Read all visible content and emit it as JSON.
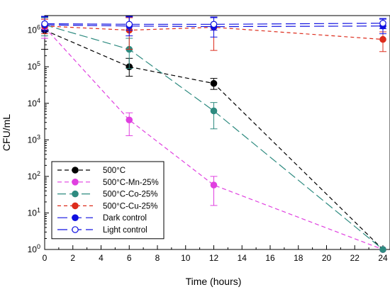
{
  "chart_data": {
    "type": "line",
    "title": "",
    "xlabel": "Time (hours)",
    "ylabel": "CFU/mL",
    "xlim": [
      0,
      24
    ],
    "ylim_log10": [
      0,
      6.4
    ],
    "y_scale": "log",
    "grid": false,
    "legend_position": "bottom-left",
    "x_ticks": [
      0,
      2,
      4,
      6,
      8,
      10,
      12,
      14,
      16,
      18,
      20,
      22,
      24
    ],
    "y_ticks": [
      {
        "exp": 0,
        "base": "10",
        "sup": "0"
      },
      {
        "exp": 1,
        "base": "10",
        "sup": "1"
      },
      {
        "exp": 2,
        "base": "10",
        "sup": "2"
      },
      {
        "exp": 3,
        "base": "10",
        "sup": "3"
      },
      {
        "exp": 4,
        "base": "10",
        "sup": "4"
      },
      {
        "exp": 5,
        "base": "10",
        "sup": "5"
      },
      {
        "exp": 6,
        "base": "10",
        "sup": "6"
      }
    ],
    "series": [
      {
        "name": "500°C",
        "color": "#000000",
        "marker": "filled",
        "dash": "6,4",
        "points": [
          {
            "x": 0,
            "y": 1000000,
            "lo": 300000,
            "hi": 2400000
          },
          {
            "x": 6,
            "y": 100000,
            "lo": 55000,
            "hi": 170000
          },
          {
            "x": 12,
            "y": 35000,
            "lo": 24000,
            "hi": 48000
          },
          {
            "x": 24,
            "y": 1,
            "lo": 1,
            "hi": 1
          }
        ]
      },
      {
        "name": "500°C-Mn-25%",
        "color": "#e040e0",
        "marker": "filled",
        "dash": "6,4",
        "points": [
          {
            "x": 0,
            "y": 1200000,
            "lo": 600000,
            "hi": 2000000
          },
          {
            "x": 6,
            "y": 3500,
            "lo": 1300,
            "hi": 5500
          },
          {
            "x": 12,
            "y": 58,
            "lo": 16,
            "hi": 100
          },
          {
            "x": 24,
            "y": 1,
            "lo": 1,
            "hi": 1
          }
        ]
      },
      {
        "name": "500°C-Co-25%",
        "color": "#2e8b80",
        "marker": "filled",
        "dash": "12,5",
        "points": [
          {
            "x": 0,
            "y": 1400000,
            "lo": 700000,
            "hi": 2200000
          },
          {
            "x": 6,
            "y": 300000,
            "lo": 90000,
            "hi": 600000
          },
          {
            "x": 12,
            "y": 6200,
            "lo": 2000,
            "hi": 10500
          },
          {
            "x": 24,
            "y": 1,
            "lo": 1,
            "hi": 1
          }
        ]
      },
      {
        "name": "500°C-Cu-25%",
        "color": "#dd2c1c",
        "marker": "filled",
        "dash": "5,4",
        "points": [
          {
            "x": 0,
            "y": 1300000,
            "lo": 800000,
            "hi": 2000000
          },
          {
            "x": 6,
            "y": 1000000,
            "lo": 300000,
            "hi": 2200000
          },
          {
            "x": 12,
            "y": 1200000,
            "lo": 280000,
            "hi": 2300000
          },
          {
            "x": 24,
            "y": 560000,
            "lo": 260000,
            "hi": 900000
          }
        ]
      },
      {
        "name": "Dark control",
        "color": "#1010e0",
        "marker": "filled",
        "dash": "14,6",
        "points": [
          {
            "x": 0,
            "y": 1400000,
            "lo": 900000,
            "hi": 2300000
          },
          {
            "x": 6,
            "y": 1300000,
            "lo": 700000,
            "hi": 2300000
          },
          {
            "x": 12,
            "y": 1250000,
            "lo": 650000,
            "hi": 2200000
          },
          {
            "x": 24,
            "y": 1300000,
            "lo": 800000,
            "hi": 2000000
          }
        ]
      },
      {
        "name": "Light control",
        "color": "#1010e0",
        "marker": "open",
        "dash": "14,6",
        "points": [
          {
            "x": 0,
            "y": 1500000,
            "lo": 1000000,
            "hi": 2400000
          },
          {
            "x": 6,
            "y": 1450000,
            "lo": 1000000,
            "hi": 2400000
          },
          {
            "x": 12,
            "y": 1450000,
            "lo": 1000000,
            "hi": 2300000
          },
          {
            "x": 24,
            "y": 1550000,
            "lo": 1100000,
            "hi": 2100000
          }
        ]
      }
    ]
  }
}
